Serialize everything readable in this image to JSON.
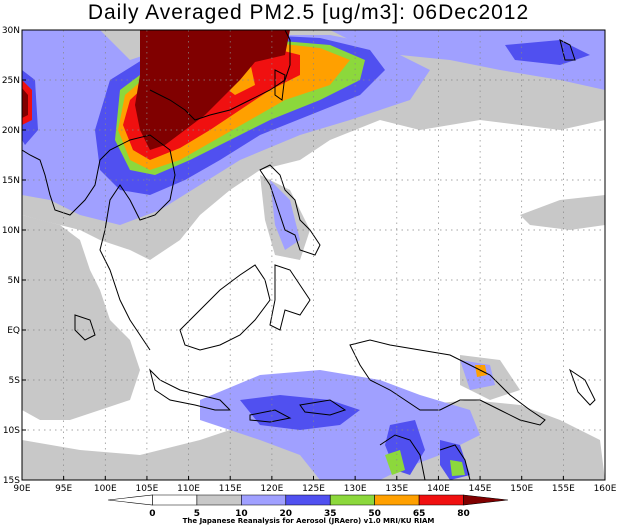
{
  "map": {
    "title": "Daily Averaged PM2.5 [ug/m3]: 06Dec2012",
    "lon_labels": [
      "90E",
      "95E",
      "100E",
      "105E",
      "110E",
      "115E",
      "120E",
      "125E",
      "130E",
      "135E",
      "140E",
      "145E",
      "150E",
      "155E",
      "160E"
    ],
    "lat_labels": [
      "30N",
      "25N",
      "20N",
      "15N",
      "10N",
      "5N",
      "EQ",
      "5S",
      "10S",
      "15S"
    ],
    "extent": {
      "lon": [
        90,
        160
      ],
      "lat": [
        -15,
        30
      ]
    },
    "variable": "PM2.5",
    "units": "ug/m3",
    "date": "06Dec2012",
    "colorbar": {
      "levels": [
        "0",
        "5",
        "10",
        "20",
        "35",
        "50",
        "65",
        "80"
      ],
      "colors": [
        "#ffffff",
        "#ffffff",
        "#c8c8c8",
        "#a0a0ff",
        "#5050f0",
        "#8cd83c",
        "#ffa000",
        "#f01010",
        "#800000"
      ]
    },
    "credit": "The Japanese Reanalysis for Aerosol (JRAero) v1.0 MRI/KU RIAM"
  }
}
